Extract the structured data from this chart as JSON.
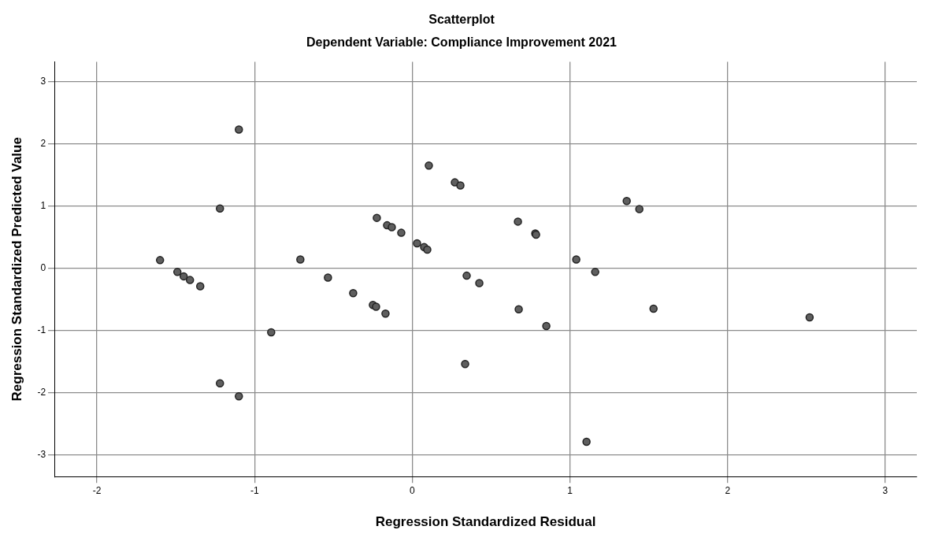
{
  "chart_data": {
    "type": "scatter",
    "title": "Scatterplot",
    "subtitle": "Dependent Variable: Compliance Improvement 2021",
    "xlabel": "Regression Standardized Residual",
    "ylabel": "Regression Standardized Predicted Value",
    "x": [
      -1.6,
      -1.49,
      -1.45,
      -1.41,
      -1.345,
      -1.1,
      -1.22,
      -1.22,
      -1.1,
      -0.71,
      -0.535,
      -0.375,
      -0.25,
      -0.23,
      -0.17,
      -0.895,
      -0.225,
      -0.16,
      -0.13,
      -0.07,
      0.03,
      0.075,
      0.095,
      0.105,
      0.27,
      0.305,
      0.345,
      0.425,
      0.335,
      0.67,
      0.675,
      0.78,
      0.785,
      0.85,
      1.04,
      1.16,
      1.105,
      1.36,
      1.44,
      1.53,
      2.52
    ],
    "values": [
      0.13,
      -0.06,
      -0.13,
      -0.19,
      -0.29,
      2.23,
      0.96,
      -1.85,
      -2.06,
      0.14,
      -0.15,
      -0.4,
      -0.59,
      -0.62,
      -0.73,
      -1.03,
      0.81,
      0.69,
      0.66,
      0.57,
      0.4,
      0.34,
      0.3,
      1.65,
      1.38,
      1.33,
      -0.12,
      -0.24,
      -1.54,
      0.75,
      -0.66,
      0.56,
      0.54,
      -0.93,
      0.14,
      -0.06,
      -2.79,
      1.08,
      0.95,
      -0.65,
      -0.79
    ],
    "color": "#5f5f5f",
    "marker": "circle",
    "grid": true,
    "legend": false,
    "xlim": [
      -2.27,
      3.2
    ],
    "xticks": [
      -2,
      -1,
      0,
      1,
      2,
      3
    ],
    "ylim": [
      -3.35,
      3.32
    ],
    "yticks": [
      -3,
      -2,
      -1,
      0,
      1,
      2,
      3
    ]
  }
}
